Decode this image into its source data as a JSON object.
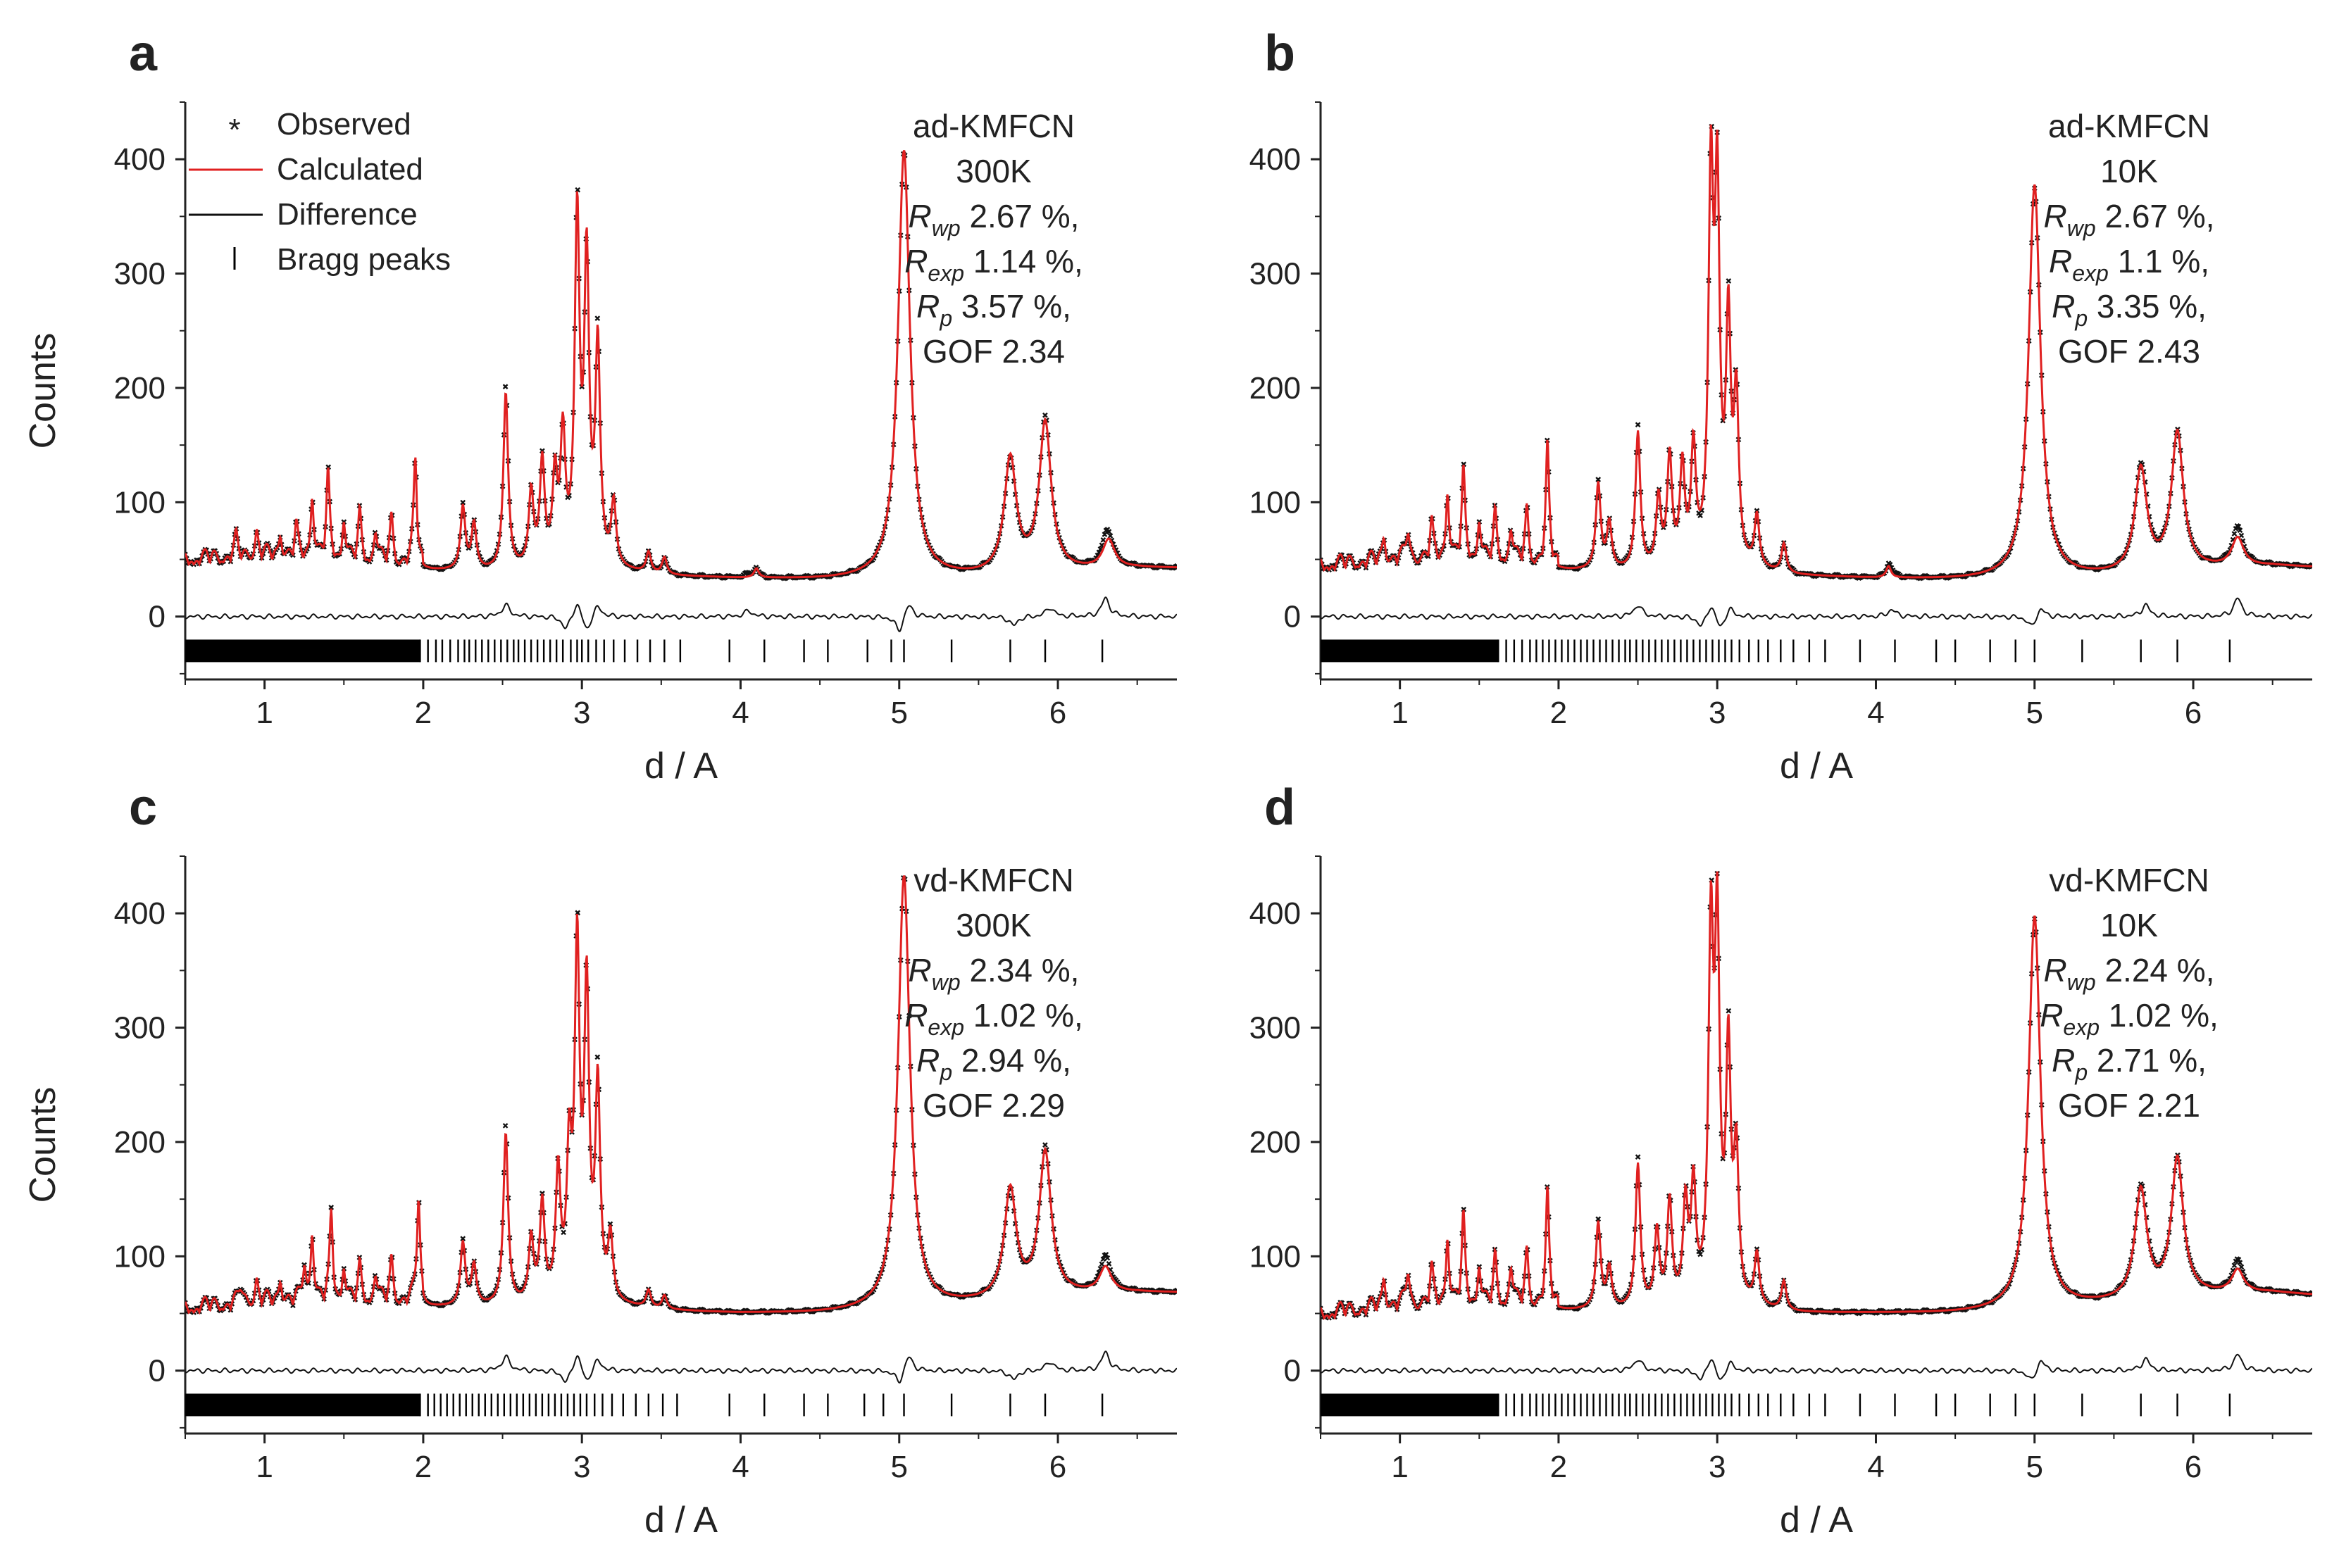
{
  "figure": {
    "shared": {
      "xlabel": "d / A",
      "ylabel": "Counts",
      "xlim": [
        0.5,
        6.75
      ],
      "ylim": [
        -55,
        450
      ],
      "xticks": [
        1,
        2,
        3,
        4,
        5,
        6
      ],
      "yticks": [
        0,
        100,
        200,
        300,
        400
      ],
      "legend": [
        {
          "label": "Observed",
          "marker": "*"
        },
        {
          "label": "Calculated",
          "marker": "red-line"
        },
        {
          "label": "Difference",
          "marker": "black-line"
        },
        {
          "label": "Bragg peaks",
          "marker": "|"
        }
      ],
      "colors": {
        "calculated": "#e02020",
        "observed": "#111111",
        "difference": "#111111"
      },
      "tick_row_y": -30
    }
  },
  "chart_data": [
    {
      "type": "line",
      "panel": "a",
      "sample": "ad-KMFCN",
      "temperature": "300K",
      "stats": {
        "rwp": "2.67 %,",
        "rexp": "1.14 %,",
        "rp": "3.57 %,",
        "gof": "GOF 2.34"
      },
      "background": [
        [
          0.5,
          45
        ],
        [
          1.0,
          48
        ],
        [
          1.5,
          44
        ],
        [
          2.0,
          40
        ],
        [
          2.5,
          38
        ],
        [
          3.0,
          42
        ],
        [
          3.5,
          35
        ],
        [
          4.0,
          33
        ],
        [
          4.5,
          32
        ],
        [
          5.0,
          32
        ],
        [
          5.5,
          34
        ],
        [
          6.0,
          38
        ],
        [
          6.5,
          42
        ],
        [
          6.75,
          42
        ]
      ],
      "peaks": [
        [
          0.82,
          16
        ],
        [
          0.95,
          22
        ],
        [
          1.1,
          20
        ],
        [
          1.2,
          25
        ],
        [
          1.3,
          55
        ],
        [
          1.4,
          72
        ],
        [
          1.5,
          35
        ],
        [
          1.6,
          40
        ],
        [
          1.7,
          28
        ],
        [
          1.8,
          38
        ],
        [
          1.95,
          90
        ],
        [
          2.25,
          55
        ],
        [
          2.32,
          40
        ],
        [
          2.52,
          155
        ],
        [
          2.68,
          65
        ],
        [
          2.75,
          90
        ],
        [
          2.83,
          75
        ],
        [
          2.88,
          110
        ],
        [
          2.97,
          300
        ],
        [
          3.03,
          260
        ],
        [
          3.1,
          190
        ],
        [
          3.2,
          55
        ],
        [
          3.42,
          18
        ],
        [
          3.52,
          15
        ],
        [
          4.1,
          8
        ],
        [
          5.03,
          375
        ],
        [
          5.7,
          100
        ],
        [
          5.92,
          130
        ],
        [
          6.32,
          25
        ]
      ],
      "bragg": [
        1.98,
        2.03,
        2.08,
        2.12,
        2.17,
        2.22,
        2.26,
        2.29,
        2.33,
        2.37,
        2.41,
        2.45,
        2.49,
        2.53,
        2.57,
        2.6,
        2.64,
        2.68,
        2.72,
        2.76,
        2.8,
        2.84,
        2.88,
        2.93,
        2.97,
        3.0,
        3.04,
        3.09,
        3.14,
        3.2,
        3.27,
        3.35,
        3.43,
        3.52,
        3.62,
        3.93,
        4.15,
        4.4,
        4.55,
        4.8,
        4.95,
        5.03,
        5.33,
        5.7,
        5.92,
        6.28
      ],
      "diff": [
        [
          2.52,
          10
        ],
        [
          2.9,
          -12
        ],
        [
          2.97,
          14
        ],
        [
          3.03,
          -14
        ],
        [
          3.1,
          10
        ],
        [
          5.0,
          -14
        ],
        [
          5.06,
          12
        ],
        [
          5.72,
          -8
        ],
        [
          5.95,
          8
        ],
        [
          6.3,
          16
        ],
        [
          4.05,
          5
        ]
      ]
    },
    {
      "type": "line",
      "panel": "b",
      "sample": "ad-KMFCN",
      "temperature": "10K",
      "stats": {
        "rwp": "2.67 %,",
        "rexp": "1.1 %,",
        "rp": "3.35 %,",
        "gof": "GOF 2.43"
      },
      "background": [
        [
          0.5,
          40
        ],
        [
          1.0,
          45
        ],
        [
          1.5,
          44
        ],
        [
          2.0,
          40
        ],
        [
          2.5,
          38
        ],
        [
          3.0,
          42
        ],
        [
          3.5,
          35
        ],
        [
          4.0,
          33
        ],
        [
          4.5,
          32
        ],
        [
          5.0,
          32
        ],
        [
          5.5,
          35
        ],
        [
          6.0,
          40
        ],
        [
          6.5,
          44
        ],
        [
          6.75,
          43
        ]
      ],
      "peaks": [
        [
          0.9,
          20
        ],
        [
          1.05,
          25
        ],
        [
          1.2,
          30
        ],
        [
          1.3,
          60
        ],
        [
          1.4,
          75
        ],
        [
          1.5,
          35
        ],
        [
          1.6,
          40
        ],
        [
          1.7,
          30
        ],
        [
          1.8,
          45
        ],
        [
          1.93,
          100
        ],
        [
          2.25,
          75
        ],
        [
          2.32,
          40
        ],
        [
          2.5,
          120
        ],
        [
          2.63,
          60
        ],
        [
          2.7,
          95
        ],
        [
          2.78,
          85
        ],
        [
          2.85,
          100
        ],
        [
          2.96,
          325
        ],
        [
          3.0,
          310
        ],
        [
          3.07,
          205
        ],
        [
          3.12,
          140
        ],
        [
          3.25,
          45
        ],
        [
          3.42,
          25
        ],
        [
          4.08,
          10
        ],
        [
          5.0,
          345
        ],
        [
          5.67,
          90
        ],
        [
          5.9,
          120
        ],
        [
          6.28,
          25
        ]
      ],
      "bragg": [
        1.62,
        1.67,
        1.72,
        1.77,
        1.82,
        1.86,
        1.9,
        1.94,
        1.98,
        2.02,
        2.06,
        2.1,
        2.14,
        2.18,
        2.22,
        2.26,
        2.3,
        2.34,
        2.38,
        2.42,
        2.45,
        2.49,
        2.53,
        2.57,
        2.61,
        2.65,
        2.69,
        2.73,
        2.77,
        2.81,
        2.85,
        2.89,
        2.93,
        2.97,
        3.01,
        3.05,
        3.09,
        3.14,
        3.2,
        3.26,
        3.32,
        3.4,
        3.48,
        3.58,
        3.68,
        3.9,
        4.12,
        4.38,
        4.5,
        4.72,
        4.88,
        5.0,
        5.3,
        5.67,
        5.9,
        6.23
      ],
      "diff": [
        [
          2.5,
          10
        ],
        [
          2.9,
          -10
        ],
        [
          2.96,
          12
        ],
        [
          3.02,
          -12
        ],
        [
          3.08,
          8
        ],
        [
          4.1,
          6
        ],
        [
          4.98,
          -10
        ],
        [
          5.04,
          8
        ],
        [
          5.7,
          10
        ],
        [
          6.28,
          16
        ]
      ]
    },
    {
      "type": "line",
      "panel": "c",
      "sample": "vd-KMFCN",
      "temperature": "300K",
      "stats": {
        "rwp": "2.34 %,",
        "rexp": "1.02 %,",
        "rp": "2.94 %,",
        "gof": "GOF 2.29"
      },
      "background": [
        [
          0.5,
          50
        ],
        [
          1.0,
          55
        ],
        [
          1.5,
          55
        ],
        [
          2.0,
          55
        ],
        [
          2.5,
          55
        ],
        [
          3.0,
          58
        ],
        [
          3.5,
          52
        ],
        [
          4.0,
          50
        ],
        [
          4.5,
          50
        ],
        [
          5.0,
          52
        ],
        [
          5.5,
          58
        ],
        [
          6.0,
          65
        ],
        [
          6.5,
          68
        ],
        [
          6.75,
          68
        ]
      ],
      "peaks": [
        [
          0.85,
          15
        ],
        [
          0.95,
          20
        ],
        [
          1.1,
          20
        ],
        [
          1.25,
          30
        ],
        [
          1.3,
          60
        ],
        [
          1.42,
          75
        ],
        [
          1.5,
          30
        ],
        [
          1.6,
          30
        ],
        [
          1.7,
          25
        ],
        [
          1.8,
          35
        ],
        [
          1.97,
          90
        ],
        [
          2.25,
          55
        ],
        [
          2.32,
          35
        ],
        [
          2.52,
          150
        ],
        [
          2.68,
          55
        ],
        [
          2.75,
          85
        ],
        [
          2.85,
          110
        ],
        [
          2.92,
          120
        ],
        [
          2.97,
          300
        ],
        [
          3.03,
          265
        ],
        [
          3.1,
          185
        ],
        [
          3.18,
          55
        ],
        [
          3.42,
          15
        ],
        [
          3.52,
          12
        ],
        [
          5.03,
          380
        ],
        [
          5.7,
          95
        ],
        [
          5.92,
          125
        ],
        [
          6.3,
          22
        ]
      ],
      "bragg": [
        1.98,
        2.03,
        2.07,
        2.11,
        2.15,
        2.19,
        2.23,
        2.27,
        2.31,
        2.35,
        2.39,
        2.43,
        2.47,
        2.51,
        2.55,
        2.59,
        2.63,
        2.67,
        2.71,
        2.75,
        2.79,
        2.83,
        2.87,
        2.91,
        2.95,
        2.99,
        3.03,
        3.08,
        3.13,
        3.19,
        3.26,
        3.34,
        3.42,
        3.51,
        3.6,
        3.93,
        4.15,
        4.4,
        4.55,
        4.78,
        4.9,
        5.03,
        5.33,
        5.7,
        5.92,
        6.28
      ],
      "diff": [
        [
          2.52,
          12
        ],
        [
          2.9,
          -12
        ],
        [
          2.97,
          16
        ],
        [
          3.03,
          -12
        ],
        [
          3.1,
          10
        ],
        [
          5.0,
          -12
        ],
        [
          5.06,
          14
        ],
        [
          5.72,
          -8
        ],
        [
          5.95,
          8
        ],
        [
          6.3,
          16
        ]
      ]
    },
    {
      "type": "line",
      "panel": "d",
      "sample": "vd-KMFCN",
      "temperature": "10K",
      "stats": {
        "rwp": "2.24 %,",
        "rexp": "1.02 %,",
        "rp": "2.71 %,",
        "gof": "GOF 2.21"
      },
      "background": [
        [
          0.5,
          45
        ],
        [
          1.0,
          52
        ],
        [
          1.5,
          52
        ],
        [
          2.0,
          52
        ],
        [
          2.5,
          52
        ],
        [
          3.0,
          55
        ],
        [
          3.5,
          50
        ],
        [
          4.0,
          50
        ],
        [
          4.5,
          50
        ],
        [
          5.0,
          52
        ],
        [
          5.5,
          58
        ],
        [
          6.0,
          65
        ],
        [
          6.5,
          68
        ],
        [
          6.75,
          66
        ]
      ],
      "peaks": [
        [
          0.9,
          25
        ],
        [
          1.05,
          30
        ],
        [
          1.2,
          30
        ],
        [
          1.3,
          60
        ],
        [
          1.4,
          75
        ],
        [
          1.5,
          35
        ],
        [
          1.6,
          40
        ],
        [
          1.7,
          35
        ],
        [
          1.8,
          45
        ],
        [
          1.93,
          95
        ],
        [
          2.25,
          75
        ],
        [
          2.32,
          35
        ],
        [
          2.5,
          125
        ],
        [
          2.62,
          65
        ],
        [
          2.7,
          90
        ],
        [
          2.8,
          85
        ],
        [
          2.85,
          100
        ],
        [
          2.96,
          310
        ],
        [
          3.0,
          310
        ],
        [
          3.07,
          215
        ],
        [
          3.12,
          125
        ],
        [
          3.25,
          45
        ],
        [
          3.42,
          25
        ],
        [
          5.0,
          345
        ],
        [
          5.67,
          95
        ],
        [
          5.9,
          120
        ],
        [
          6.28,
          20
        ]
      ],
      "bragg": [
        1.62,
        1.67,
        1.72,
        1.77,
        1.82,
        1.86,
        1.9,
        1.94,
        1.98,
        2.02,
        2.06,
        2.1,
        2.14,
        2.18,
        2.22,
        2.26,
        2.3,
        2.34,
        2.38,
        2.42,
        2.45,
        2.49,
        2.53,
        2.57,
        2.61,
        2.65,
        2.69,
        2.73,
        2.77,
        2.81,
        2.85,
        2.89,
        2.93,
        2.97,
        3.01,
        3.05,
        3.09,
        3.14,
        3.2,
        3.26,
        3.32,
        3.4,
        3.48,
        3.58,
        3.68,
        3.9,
        4.12,
        4.38,
        4.5,
        4.72,
        4.88,
        5.0,
        5.3,
        5.67,
        5.9,
        6.23
      ],
      "diff": [
        [
          2.5,
          10
        ],
        [
          2.9,
          -10
        ],
        [
          2.96,
          14
        ],
        [
          3.02,
          -12
        ],
        [
          3.08,
          8
        ],
        [
          4.98,
          -10
        ],
        [
          5.04,
          10
        ],
        [
          5.7,
          10
        ],
        [
          6.28,
          14
        ]
      ]
    }
  ]
}
